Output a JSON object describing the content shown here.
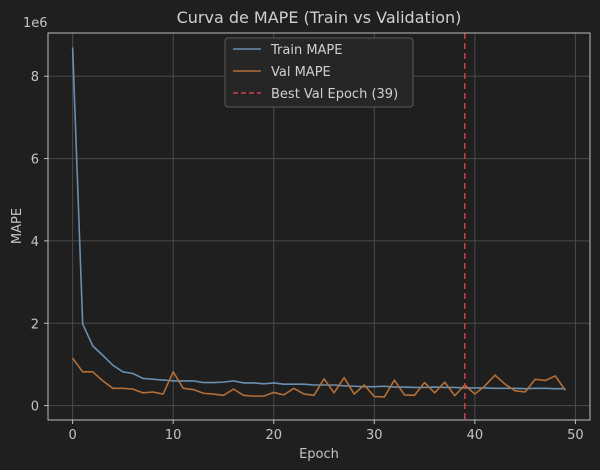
{
  "chart_data": {
    "type": "line",
    "title": "Curva de MAPE (Train vs Validation)",
    "xlabel": "Epoch",
    "ylabel": "MAPE",
    "y_scale_label": "1e6",
    "xlim": [
      -2.45,
      51.45
    ],
    "ylim": [
      -0.35,
      9.05
    ],
    "x_ticks": [
      0,
      10,
      20,
      30,
      40,
      50
    ],
    "y_ticks": [
      0,
      2,
      4,
      6,
      8
    ],
    "y_tick_labels": [
      "0",
      "2",
      "4",
      "6",
      "8"
    ],
    "grid": true,
    "legend_position": "top-center",
    "x": [
      0,
      1,
      2,
      3,
      4,
      5,
      6,
      7,
      8,
      9,
      10,
      11,
      12,
      13,
      14,
      15,
      16,
      17,
      18,
      19,
      20,
      21,
      22,
      23,
      24,
      25,
      26,
      27,
      28,
      29,
      30,
      31,
      32,
      33,
      34,
      35,
      36,
      37,
      38,
      39,
      40,
      41,
      42,
      43,
      44,
      45,
      46,
      47,
      48,
      49
    ],
    "series": [
      {
        "name": "Train MAPE",
        "color": "#6a8fb0",
        "values": [
          8.7,
          1.98,
          1.45,
          1.22,
          0.98,
          0.82,
          0.78,
          0.66,
          0.64,
          0.62,
          0.6,
          0.6,
          0.6,
          0.56,
          0.56,
          0.57,
          0.6,
          0.55,
          0.55,
          0.53,
          0.55,
          0.52,
          0.52,
          0.52,
          0.5,
          0.5,
          0.5,
          0.48,
          0.47,
          0.46,
          0.46,
          0.47,
          0.45,
          0.45,
          0.44,
          0.44,
          0.45,
          0.44,
          0.44,
          0.43,
          0.43,
          0.43,
          0.42,
          0.42,
          0.42,
          0.41,
          0.42,
          0.42,
          0.41,
          0.41
        ]
      },
      {
        "name": "Val MAPE",
        "color": "#b36f38",
        "values": [
          1.15,
          0.82,
          0.82,
          0.6,
          0.42,
          0.42,
          0.4,
          0.31,
          0.33,
          0.28,
          0.82,
          0.42,
          0.39,
          0.3,
          0.28,
          0.25,
          0.4,
          0.25,
          0.23,
          0.23,
          0.32,
          0.26,
          0.42,
          0.28,
          0.25,
          0.65,
          0.31,
          0.68,
          0.28,
          0.5,
          0.22,
          0.21,
          0.62,
          0.26,
          0.25,
          0.56,
          0.31,
          0.57,
          0.24,
          0.5,
          0.28,
          0.48,
          0.74,
          0.52,
          0.36,
          0.33,
          0.64,
          0.61,
          0.72,
          0.37
        ]
      }
    ],
    "reference_lines": [
      {
        "name": "Best Val Epoch (39)",
        "x": 39,
        "color": "#c8434a",
        "style": "dashed"
      }
    ]
  }
}
